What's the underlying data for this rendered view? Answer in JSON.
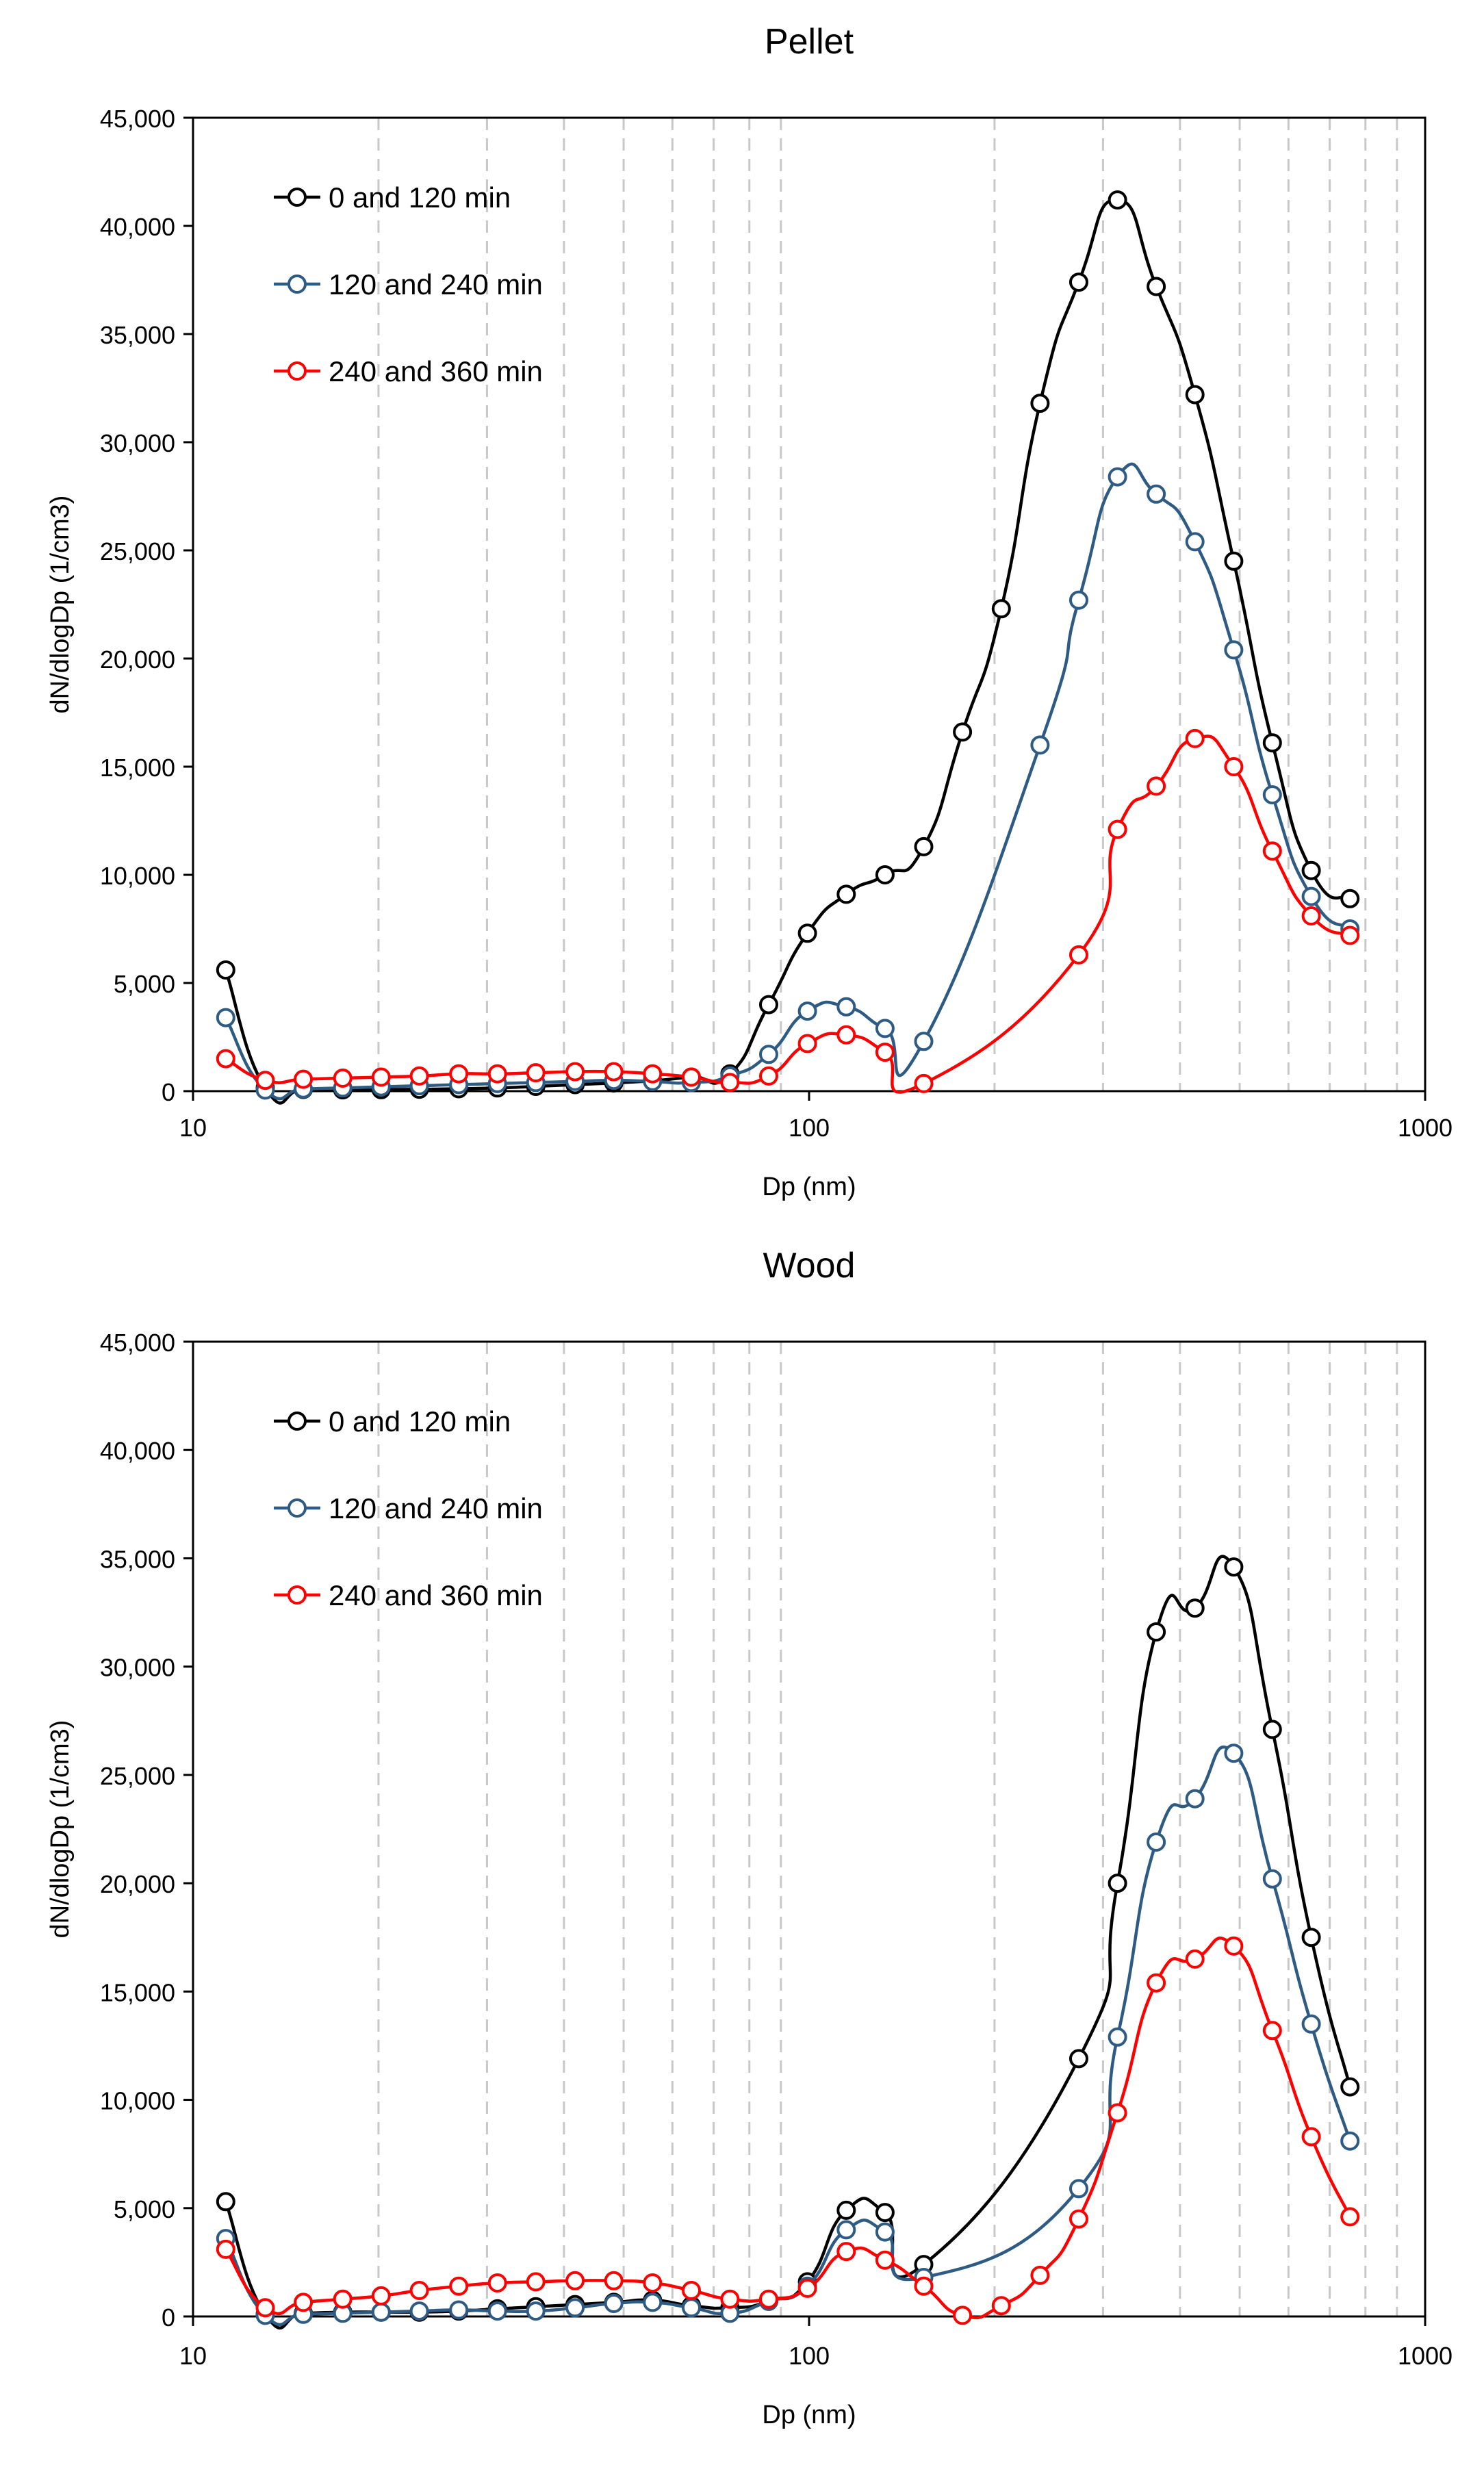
{
  "colors": {
    "background": "#ffffff",
    "axis": "#000000",
    "grid": "#c8c8c8"
  },
  "chart_data": [
    {
      "type": "line",
      "title": "Pellet",
      "xlabel": "Dp (nm)",
      "ylabel": "dN/dlogDp (1/cm3)",
      "xscale": "log",
      "xlim": [
        10,
        1000
      ],
      "ylim": [
        0,
        45000
      ],
      "xticks": [
        10,
        100,
        1000
      ],
      "xtick_labels": [
        "10",
        "100",
        "1000"
      ],
      "yticks": [
        0,
        5000,
        10000,
        15000,
        20000,
        25000,
        30000,
        35000,
        40000,
        45000
      ],
      "ytick_labels": [
        "0",
        "5,000",
        "10,000",
        "15,000",
        "20,000",
        "25,000",
        "30,000",
        "35,000",
        "40,000",
        "45,000"
      ],
      "grid": "vertical dashed at 20-90 and 200-900",
      "legend": "top-left",
      "series": [
        {
          "name": "0 and 120 min",
          "color": "#000000",
          "x": [
            11.3,
            13.1,
            15.1,
            17.5,
            20.2,
            23.3,
            27,
            31.2,
            36,
            41.7,
            48.2,
            55.7,
            64.4,
            74.4,
            86,
            99.4,
            114.9,
            132.8,
            153.5,
            177.4,
            205.1,
            237.1,
            274,
            316.7,
            366,
            423,
            489,
            565,
            653.3,
            755
          ],
          "y": [
            5600,
            150,
            80,
            60,
            70,
            90,
            110,
            150,
            220,
            300,
            380,
            480,
            650,
            800,
            4000,
            7300,
            9100,
            10000,
            11300,
            16600,
            22300,
            31800,
            37400,
            41200,
            37200,
            32200,
            24500,
            16100,
            10200,
            8900
          ]
        },
        {
          "name": "120 and 240 min",
          "color": "#2e5b84",
          "x": [
            11.3,
            13.1,
            15.1,
            17.5,
            20.2,
            23.3,
            27,
            31.2,
            36,
            41.7,
            48.2,
            55.7,
            64.4,
            74.4,
            86,
            99.4,
            114.9,
            132.8,
            153.5,
            237.1,
            274,
            316.7,
            366,
            423,
            489,
            565,
            653.3,
            755
          ],
          "y": [
            3400,
            50,
            100,
            150,
            200,
            250,
            300,
            350,
            400,
            450,
            500,
            450,
            400,
            700,
            1700,
            3700,
            3900,
            2900,
            2300,
            16000,
            22700,
            28400,
            27600,
            25400,
            20400,
            13700,
            9000,
            7500
          ]
        },
        {
          "name": "240 and 360 min",
          "color": "#ff0000",
          "x": [
            11.3,
            13.1,
            15.1,
            17.5,
            20.2,
            23.3,
            27,
            31.2,
            36,
            41.7,
            48.2,
            55.7,
            64.4,
            74.4,
            86,
            99.4,
            114.9,
            132.8,
            153.5,
            274,
            316.7,
            366,
            423,
            489,
            565,
            653.3,
            755
          ],
          "y": [
            1500,
            500,
            550,
            600,
            650,
            700,
            800,
            800,
            850,
            900,
            900,
            800,
            650,
            400,
            700,
            2200,
            2600,
            1800,
            350,
            6300,
            12100,
            14100,
            16300,
            15000,
            11100,
            8100,
            7200
          ]
        }
      ]
    },
    {
      "type": "line",
      "title": "Wood",
      "xlabel": "Dp (nm)",
      "ylabel": "dN/dlogDp (1/cm3)",
      "xscale": "log",
      "xlim": [
        10,
        1000
      ],
      "ylim": [
        0,
        45000
      ],
      "xticks": [
        10,
        100,
        1000
      ],
      "xtick_labels": [
        "10",
        "100",
        "1000"
      ],
      "yticks": [
        0,
        5000,
        10000,
        15000,
        20000,
        25000,
        30000,
        35000,
        40000,
        45000
      ],
      "ytick_labels": [
        "0",
        "5,000",
        "10,000",
        "15,000",
        "20,000",
        "25,000",
        "30,000",
        "35,000",
        "40,000",
        "45,000"
      ],
      "grid": "vertical dashed at 20-90 and 200-900",
      "legend": "top-left",
      "series": [
        {
          "name": "0 and 120 min",
          "color": "#000000",
          "x": [
            11.3,
            13.1,
            15.1,
            17.5,
            20.2,
            23.3,
            27,
            31.2,
            36,
            41.7,
            48.2,
            55.7,
            64.4,
            74.4,
            86,
            99.4,
            114.9,
            132.8,
            153.5,
            274,
            316.7,
            366,
            423,
            489,
            565,
            653.3,
            755
          ],
          "y": [
            5300,
            100,
            150,
            200,
            200,
            200,
            250,
            350,
            450,
            550,
            650,
            750,
            500,
            400,
            700,
            1600,
            4900,
            4800,
            2400,
            11900,
            20000,
            31600,
            32700,
            34600,
            27100,
            17500,
            10600
          ]
        },
        {
          "name": "120 and 240 min",
          "color": "#2e5b84",
          "x": [
            11.3,
            13.1,
            15.1,
            17.5,
            20.2,
            23.3,
            27,
            31.2,
            36,
            41.7,
            48.2,
            55.7,
            64.4,
            74.4,
            86,
            99.4,
            114.9,
            132.8,
            153.5,
            274,
            316.7,
            366,
            423,
            489,
            565,
            653.3,
            755
          ],
          "y": [
            3600,
            50,
            100,
            150,
            200,
            250,
            300,
            250,
            250,
            400,
            600,
            650,
            400,
            150,
            700,
            1400,
            4000,
            3900,
            1800,
            5900,
            12900,
            21900,
            23900,
            26000,
            20200,
            13500,
            8100
          ]
        },
        {
          "name": "240 and 360 min",
          "color": "#ff0000",
          "x": [
            11.3,
            13.1,
            15.1,
            17.5,
            20.2,
            23.3,
            27,
            31.2,
            36,
            41.7,
            48.2,
            55.7,
            64.4,
            74.4,
            86,
            99.4,
            114.9,
            132.8,
            153.5,
            177.4,
            205.1,
            237.1,
            274,
            316.7,
            366,
            423,
            489,
            565,
            653.3,
            755
          ],
          "y": [
            3100,
            400,
            650,
            800,
            950,
            1200,
            1400,
            1550,
            1600,
            1650,
            1650,
            1550,
            1200,
            800,
            800,
            1300,
            3000,
            2600,
            1400,
            50,
            500,
            1900,
            4500,
            9400,
            15400,
            16500,
            17100,
            13200,
            8300,
            4600
          ]
        }
      ]
    }
  ]
}
